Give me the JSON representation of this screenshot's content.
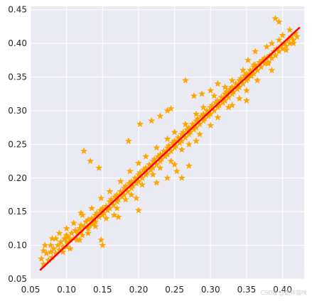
{
  "chart_data": {
    "type": "scatter",
    "title": "",
    "xlabel": "",
    "ylabel": "",
    "xlim": [
      0.05,
      0.43
    ],
    "ylim": [
      0.05,
      0.455
    ],
    "grid": true,
    "xticks": [
      "0.05",
      "0.10",
      "0.15",
      "0.20",
      "0.25",
      "0.30",
      "0.35",
      "0.40"
    ],
    "yticks": [
      "0.05",
      "0.10",
      "0.15",
      "0.20",
      "0.25",
      "0.30",
      "0.35",
      "0.40",
      "0.45"
    ],
    "marker": "star",
    "point_color": "#FFA500",
    "line_color": "#FF0000",
    "background_color": "#EAEAF2",
    "series": [
      {
        "kind": "scatter",
        "x": [
          0.065,
          0.068,
          0.072,
          0.075,
          0.078,
          0.08,
          0.082,
          0.085,
          0.088,
          0.09,
          0.092,
          0.095,
          0.097,
          0.1,
          0.1,
          0.102,
          0.105,
          0.107,
          0.11,
          0.112,
          0.115,
          0.115,
          0.118,
          0.12,
          0.12,
          0.122,
          0.125,
          0.127,
          0.13,
          0.13,
          0.132,
          0.135,
          0.137,
          0.14,
          0.14,
          0.142,
          0.145,
          0.147,
          0.15,
          0.15,
          0.152,
          0.155,
          0.157,
          0.16,
          0.16,
          0.162,
          0.165,
          0.167,
          0.17,
          0.17,
          0.172,
          0.175,
          0.177,
          0.18,
          0.18,
          0.182,
          0.185,
          0.187,
          0.19,
          0.19,
          0.192,
          0.195,
          0.197,
          0.2,
          0.2,
          0.202,
          0.205,
          0.207,
          0.21,
          0.21,
          0.212,
          0.215,
          0.217,
          0.22,
          0.22,
          0.222,
          0.225,
          0.227,
          0.23,
          0.23,
          0.232,
          0.235,
          0.237,
          0.24,
          0.24,
          0.242,
          0.245,
          0.247,
          0.25,
          0.25,
          0.252,
          0.255,
          0.257,
          0.26,
          0.26,
          0.262,
          0.265,
          0.267,
          0.27,
          0.27,
          0.272,
          0.275,
          0.277,
          0.28,
          0.28,
          0.282,
          0.285,
          0.287,
          0.29,
          0.29,
          0.292,
          0.295,
          0.297,
          0.3,
          0.3,
          0.302,
          0.305,
          0.307,
          0.31,
          0.31,
          0.312,
          0.315,
          0.317,
          0.32,
          0.32,
          0.322,
          0.325,
          0.327,
          0.33,
          0.33,
          0.332,
          0.335,
          0.337,
          0.34,
          0.34,
          0.342,
          0.345,
          0.347,
          0.35,
          0.35,
          0.352,
          0.355,
          0.357,
          0.36,
          0.36,
          0.362,
          0.365,
          0.368,
          0.37,
          0.372,
          0.375,
          0.378,
          0.38,
          0.382,
          0.385,
          0.388,
          0.39,
          0.392,
          0.395,
          0.398,
          0.4,
          0.402,
          0.405,
          0.408,
          0.41,
          0.412,
          0.415,
          0.418,
          0.42,
          0.068,
          0.078,
          0.085,
          0.09,
          0.095,
          0.1,
          0.105,
          0.11,
          0.118,
          0.122,
          0.13,
          0.135,
          0.14,
          0.148,
          0.155,
          0.16,
          0.17,
          0.175,
          0.182,
          0.188,
          0.19,
          0.2,
          0.205,
          0.21,
          0.22,
          0.225,
          0.23,
          0.24,
          0.245,
          0.25,
          0.26,
          0.265,
          0.27,
          0.28,
          0.285,
          0.29,
          0.3,
          0.305,
          0.31,
          0.32,
          0.325,
          0.33,
          0.34,
          0.345,
          0.35,
          0.36,
          0.365,
          0.375,
          0.385,
          0.395,
          0.405,
          0.415,
          0.124,
          0.133,
          0.145,
          0.186,
          0.202,
          0.218,
          0.23,
          0.24,
          0.245,
          0.265,
          0.277,
          0.288,
          0.3,
          0.31,
          0.323,
          0.352,
          0.362,
          0.378,
          0.385,
          0.39,
          0.395,
          0.41,
          0.148,
          0.166,
          0.172,
          0.197,
          0.225,
          0.24,
          0.253,
          0.26,
          0.27,
          0.318,
          0.33,
          0.355,
          0.4,
          0.15,
          0.2,
          0.25,
          0.28,
          0.1,
          0.12,
          0.35,
          0.38,
          0.07,
          0.08
        ],
        "y": [
          0.08,
          0.072,
          0.088,
          0.078,
          0.09,
          0.082,
          0.095,
          0.088,
          0.1,
          0.093,
          0.105,
          0.098,
          0.11,
          0.105,
          0.098,
          0.112,
          0.108,
          0.118,
          0.11,
          0.122,
          0.118,
          0.108,
          0.125,
          0.12,
          0.13,
          0.115,
          0.128,
          0.135,
          0.125,
          0.138,
          0.13,
          0.14,
          0.132,
          0.145,
          0.135,
          0.148,
          0.142,
          0.152,
          0.145,
          0.155,
          0.148,
          0.158,
          0.152,
          0.165,
          0.155,
          0.168,
          0.16,
          0.172,
          0.165,
          0.175,
          0.168,
          0.18,
          0.172,
          0.185,
          0.175,
          0.188,
          0.18,
          0.192,
          0.185,
          0.195,
          0.188,
          0.2,
          0.192,
          0.205,
          0.195,
          0.208,
          0.2,
          0.212,
          0.205,
          0.215,
          0.208,
          0.22,
          0.212,
          0.225,
          0.215,
          0.228,
          0.22,
          0.232,
          0.225,
          0.235,
          0.228,
          0.24,
          0.232,
          0.245,
          0.235,
          0.248,
          0.24,
          0.252,
          0.245,
          0.255,
          0.248,
          0.26,
          0.252,
          0.265,
          0.255,
          0.268,
          0.26,
          0.272,
          0.265,
          0.275,
          0.268,
          0.28,
          0.272,
          0.285,
          0.275,
          0.288,
          0.28,
          0.292,
          0.285,
          0.295,
          0.288,
          0.3,
          0.292,
          0.305,
          0.295,
          0.308,
          0.3,
          0.312,
          0.305,
          0.315,
          0.308,
          0.32,
          0.312,
          0.325,
          0.315,
          0.328,
          0.32,
          0.332,
          0.325,
          0.335,
          0.328,
          0.34,
          0.332,
          0.345,
          0.335,
          0.348,
          0.34,
          0.352,
          0.345,
          0.355,
          0.348,
          0.36,
          0.352,
          0.365,
          0.355,
          0.368,
          0.36,
          0.372,
          0.365,
          0.375,
          0.37,
          0.378,
          0.372,
          0.382,
          0.378,
          0.388,
          0.382,
          0.392,
          0.388,
          0.396,
          0.392,
          0.4,
          0.396,
          0.405,
          0.4,
          0.41,
          0.405,
          0.415,
          0.41,
          0.092,
          0.1,
          0.11,
          0.118,
          0.09,
          0.125,
          0.095,
          0.133,
          0.108,
          0.145,
          0.118,
          0.155,
          0.128,
          0.17,
          0.14,
          0.18,
          0.155,
          0.195,
          0.168,
          0.21,
          0.175,
          0.222,
          0.19,
          0.232,
          0.205,
          0.245,
          0.215,
          0.258,
          0.225,
          0.268,
          0.242,
          0.28,
          0.25,
          0.295,
          0.265,
          0.305,
          0.278,
          0.322,
          0.29,
          0.335,
          0.305,
          0.345,
          0.318,
          0.36,
          0.33,
          0.368,
          0.345,
          0.378,
          0.36,
          0.405,
          0.39,
          0.4,
          0.24,
          0.225,
          0.215,
          0.255,
          0.28,
          0.285,
          0.292,
          0.3,
          0.303,
          0.345,
          0.322,
          0.325,
          0.33,
          0.34,
          0.328,
          0.375,
          0.388,
          0.395,
          0.4,
          0.437,
          0.432,
          0.42,
          0.108,
          0.145,
          0.142,
          0.17,
          0.193,
          0.2,
          0.21,
          0.2,
          0.218,
          0.318,
          0.308,
          0.352,
          0.412,
          0.1,
          0.152,
          0.22,
          0.255,
          0.115,
          0.148,
          0.315,
          0.37,
          0.1,
          0.11
        ]
      },
      {
        "kind": "line",
        "x": [
          0.063,
          0.424
        ],
        "y": [
          0.063,
          0.424
        ]
      }
    ]
  },
  "watermark": "CSDN @矩阵猫咪"
}
